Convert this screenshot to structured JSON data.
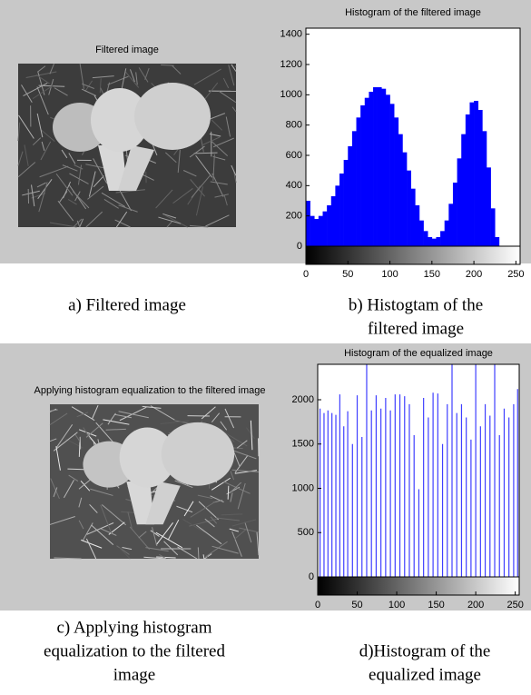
{
  "chart_data": [
    {
      "type": "histogram",
      "title": "Histogram of the filtered image",
      "color": "#0000ff",
      "bins": [
        0,
        5,
        10,
        15,
        20,
        25,
        30,
        35,
        40,
        45,
        50,
        55,
        60,
        65,
        70,
        75,
        80,
        85,
        90,
        95,
        100,
        105,
        110,
        115,
        120,
        125,
        130,
        135,
        140,
        145,
        150,
        155,
        160,
        165,
        170,
        175,
        180,
        185,
        190,
        195,
        200,
        205,
        210,
        215,
        220,
        225,
        230,
        235,
        240,
        245,
        250,
        255
      ],
      "values": [
        300,
        200,
        180,
        200,
        230,
        270,
        330,
        400,
        480,
        570,
        660,
        760,
        850,
        930,
        980,
        1020,
        1050,
        1050,
        1040,
        1000,
        940,
        850,
        740,
        620,
        500,
        380,
        270,
        170,
        100,
        60,
        50,
        60,
        100,
        170,
        280,
        420,
        580,
        740,
        870,
        950,
        960,
        900,
        760,
        520,
        250,
        60,
        0,
        0,
        0,
        0,
        0
      ],
      "xlim": [
        0,
        255
      ],
      "ylim": [
        0,
        1440
      ],
      "xticks": [
        0,
        50,
        100,
        150,
        200,
        250
      ],
      "yticks": [
        0,
        200,
        400,
        600,
        800,
        1000,
        1200,
        1400
      ]
    },
    {
      "type": "stem",
      "title": "Histogram of the equalized image",
      "color": "#3f3fff",
      "x": [
        3,
        8,
        13,
        18,
        23,
        28,
        33,
        38,
        44,
        50,
        56,
        62,
        68,
        74,
        80,
        86,
        92,
        98,
        104,
        110,
        116,
        122,
        128,
        134,
        140,
        146,
        152,
        158,
        164,
        170,
        176,
        182,
        188,
        194,
        200,
        206,
        212,
        218,
        224,
        230,
        236,
        242,
        248,
        253
      ],
      "values": [
        1900,
        1850,
        1880,
        1850,
        1830,
        2060,
        1700,
        1870,
        1500,
        2050,
        1580,
        2400,
        1880,
        2050,
        1900,
        2020,
        1880,
        2060,
        2060,
        2040,
        1950,
        1600,
        990,
        2020,
        1800,
        2080,
        2070,
        1500,
        1950,
        2400,
        1850,
        1950,
        1800,
        1550,
        2400,
        1700,
        1950,
        1820,
        2400,
        1600,
        1900,
        1800,
        1950,
        2120
      ],
      "xlim": [
        0,
        255
      ],
      "ylim": [
        0,
        2400
      ],
      "xticks": [
        0,
        50,
        100,
        150,
        200,
        250
      ],
      "yticks": [
        0,
        500,
        1000,
        1500,
        2000
      ]
    }
  ],
  "images": [
    {
      "title": "Filtered image"
    },
    {
      "title": "Applying histogram equalization to the filtered image"
    }
  ],
  "captions": [
    [
      "a) Filtered image"
    ],
    [
      "b) Histogtam of the",
      "filtered image"
    ],
    [
      "c) Applying histogram",
      "equalization to the filtered",
      "image"
    ],
    [
      "d)Histogram of the",
      "equalized image"
    ]
  ]
}
